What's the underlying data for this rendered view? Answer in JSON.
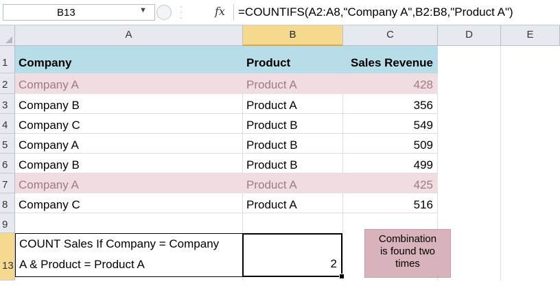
{
  "formula_bar": {
    "name_box": "B13",
    "fx_label": "fx",
    "formula": "=COUNTIFS(A2:A8,\"Company A\",B2:B8,\"Product A\")"
  },
  "columns": [
    "A",
    "B",
    "C",
    "D",
    "E"
  ],
  "rows": [
    "1",
    "2",
    "3",
    "4",
    "5",
    "6",
    "7",
    "8",
    "9",
    "13"
  ],
  "sheet": {
    "headers": {
      "company": "Company",
      "product": "Product",
      "revenue": "Sales Revenue"
    },
    "data": [
      {
        "company": "Company A",
        "product": "Product A",
        "revenue": "428"
      },
      {
        "company": "Company B",
        "product": "Product A",
        "revenue": "356"
      },
      {
        "company": "Company C",
        "product": "Product B",
        "revenue": "549"
      },
      {
        "company": "Company A",
        "product": "Product B",
        "revenue": "509"
      },
      {
        "company": "Company B",
        "product": "Product B",
        "revenue": "499"
      },
      {
        "company": "Company A",
        "product": "Product A",
        "revenue": "425"
      },
      {
        "company": "Company C",
        "product": "Product A",
        "revenue": "516"
      }
    ],
    "count_label_line1": "COUNT Sales If Company = Company",
    "count_label_line2": "A & Product = Product A",
    "count_result": "2"
  },
  "callout": {
    "line1": "Combination",
    "line2": "is found two",
    "line3": "times"
  },
  "colors": {
    "header_fill": "#b7dde8",
    "highlight_fill": "#f0dde2",
    "callout_fill": "#d9b3bc",
    "selected_header": "#f5d98e"
  }
}
